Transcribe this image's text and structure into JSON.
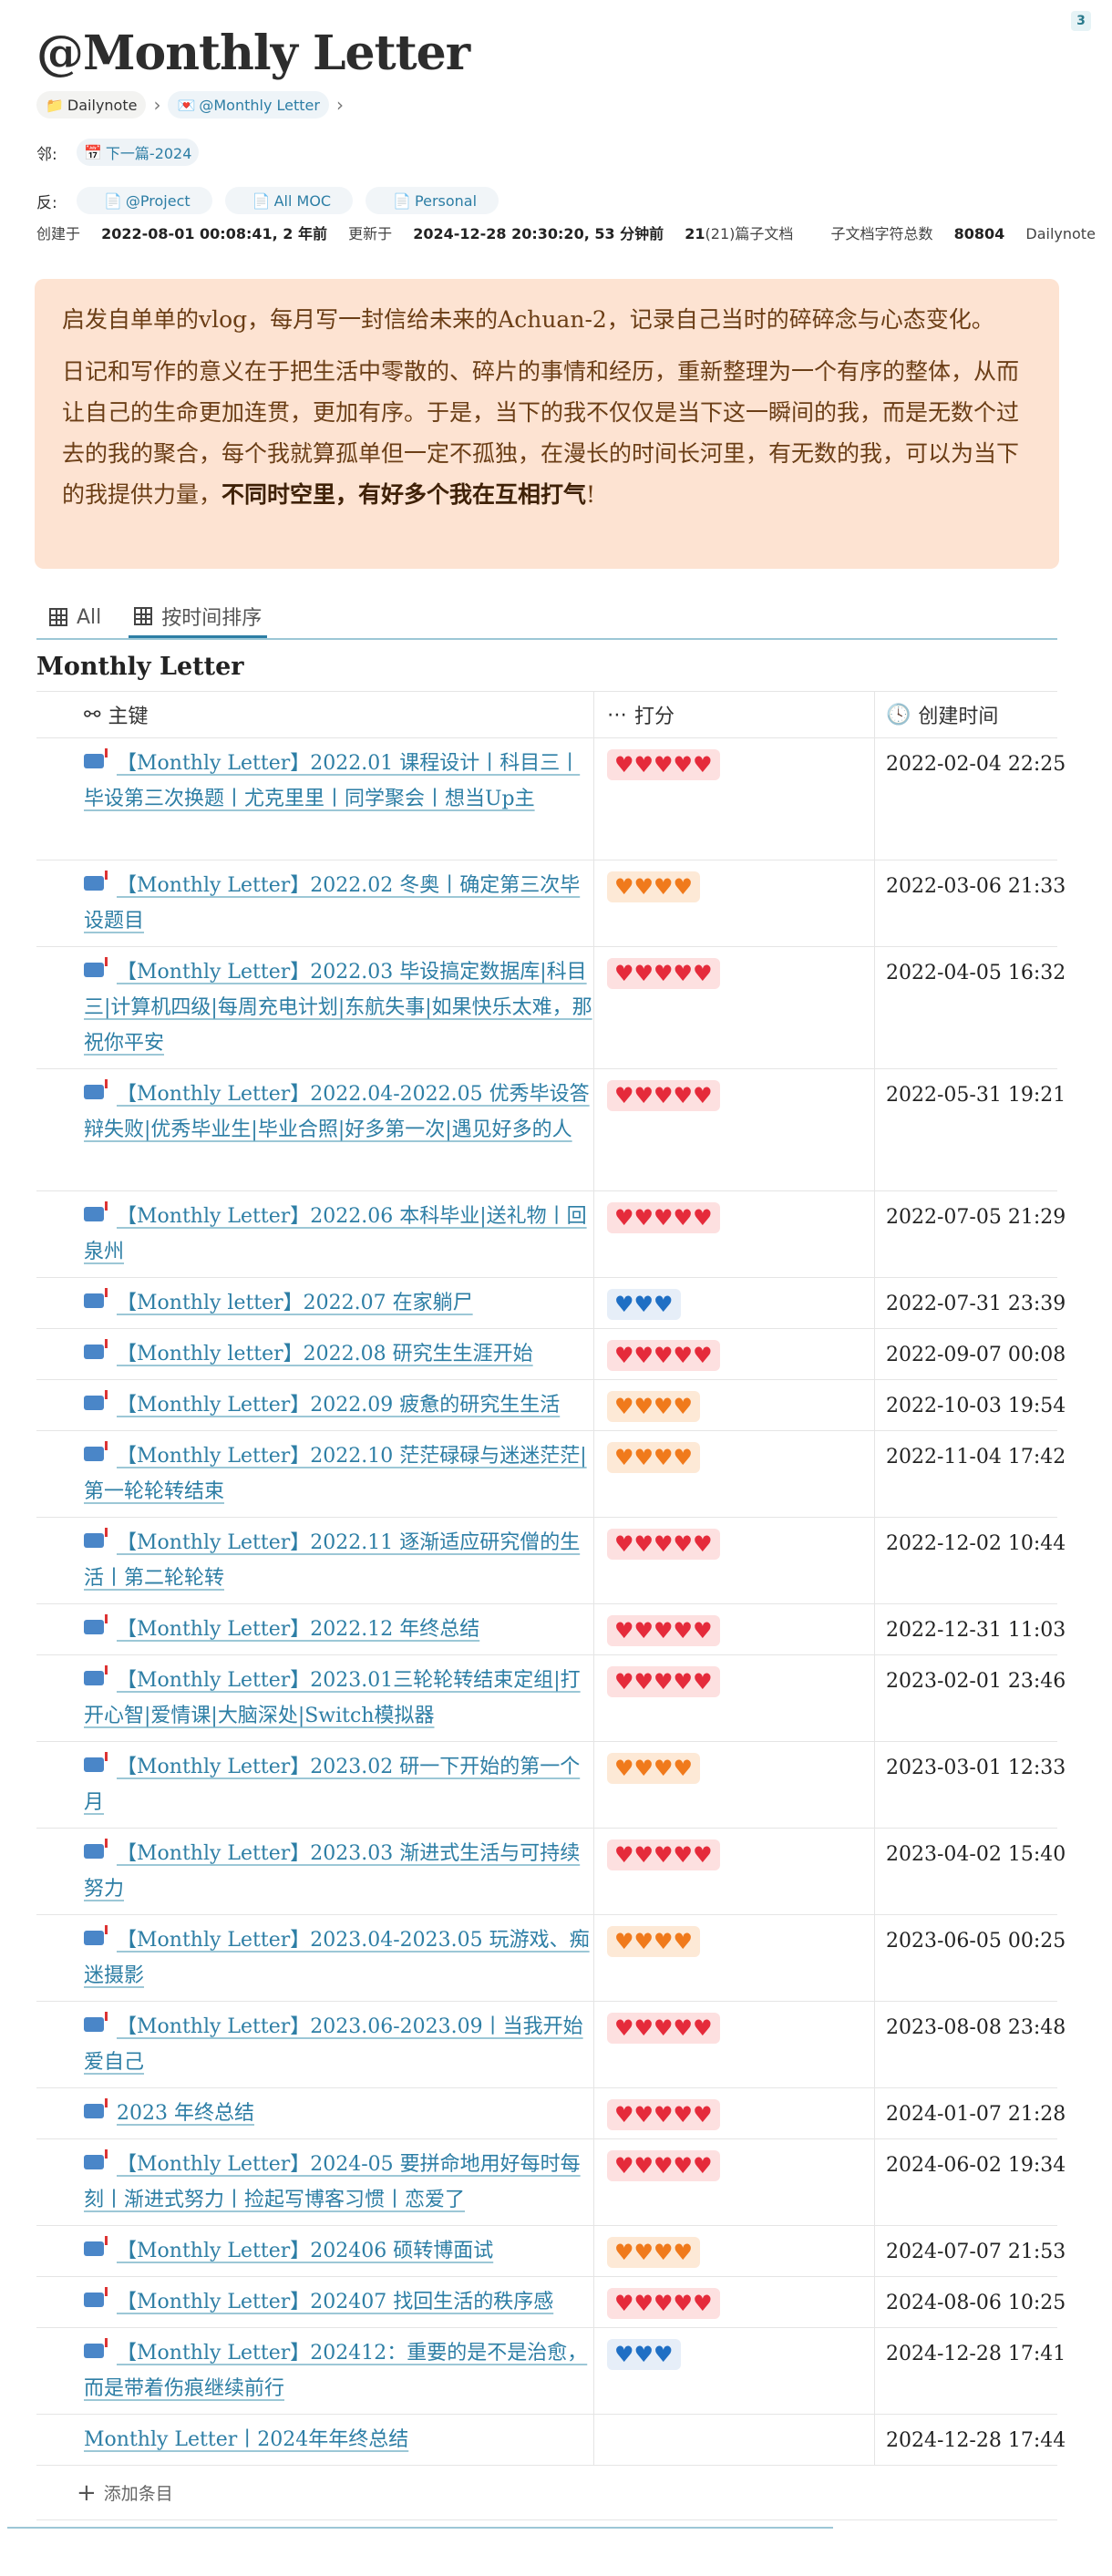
{
  "corner_badge": "3",
  "title": "@Monthly Letter",
  "breadcrumb": [
    {
      "icon": "folder-icon",
      "label": "Dailynote"
    },
    {
      "icon": "letter-icon",
      "label": "@Monthly Letter"
    }
  ],
  "neighbor": {
    "label": "邻:",
    "link": "下一篇-2024"
  },
  "backlinks": {
    "label": "反:",
    "items": [
      "@Project",
      "All MOC",
      "Personal"
    ]
  },
  "meta": {
    "created_label": "创建于",
    "created_value": "2022-08-01 00:08:41, 2 年前",
    "updated_label": "更新于",
    "updated_value": "2024-12-28 20:30:20, 53 分钟前",
    "child_count": "21",
    "child_count_suffix": "(21)篇子文档",
    "chars_label": "子文档字符总数",
    "chars_value": "80804",
    "folder": "Dailynote"
  },
  "callout": {
    "p1": "启发自单单的vlog，每月写一封信给未来的Achuan-2，记录自己当时的碎碎念与心态变化。",
    "p2": "日记和写作的意义在于把生活中零散的、碎片的事情和经历，重新整理为一个有序的整体，从而让自己的生命更加连贯，更加有序。于是，当下的我不仅仅是当下这一瞬间的我，而是无数个过去的我的聚合，每个我就算孤单但一定不孤独，在漫长的时间长河里，有无数的我，可以为当下的我提供力量，",
    "p2_bold": "不同时空里，有好多个我在互相打气",
    "p2_end": "!"
  },
  "tabs": [
    {
      "label": "All"
    },
    {
      "label": "按时间排序"
    }
  ],
  "database_title": "Monthly Letter",
  "columns": {
    "key": "主键",
    "score": "打分",
    "created": "创建时间"
  },
  "rows": [
    {
      "title": "【Monthly Letter】2022.01 课程设计丨科目三丨毕设第三次换题丨尤克里里丨同学聚会丨想当Up主",
      "score": "♥♥♥♥♥",
      "color": "red",
      "created": "2022-02-04 22:25",
      "lines": 3
    },
    {
      "title": "【Monthly Letter】2022.02 冬奥丨确定第三次毕设题目",
      "score": "♥♥♥♥",
      "color": "orange",
      "created": "2022-03-06 21:33",
      "lines": 2
    },
    {
      "title": "【Monthly Letter】2022.03 毕设搞定数据库|科目三|计算机四级|每周充电计划|东航失事|如果快乐太难，那祝你平安",
      "score": "♥♥♥♥♥",
      "color": "red",
      "created": "2022-04-05 16:32",
      "lines": 3
    },
    {
      "title": "【Monthly Letter】2022.04-2022.05 优秀毕设答辩失败|优秀毕业生|毕业合照|好多第一次|遇见好多的人",
      "score": "♥♥♥♥♥",
      "color": "red",
      "created": "2022-05-31 19:21",
      "lines": 3
    },
    {
      "title": "【Monthly Letter】2022.06 本科毕业|送礼物丨回泉州",
      "score": "♥♥♥♥♥",
      "color": "red",
      "created": "2022-07-05 21:29",
      "lines": 2
    },
    {
      "title": "【Monthly letter】2022.07 在家躺尸",
      "score": "♥♥♥",
      "color": "blue",
      "created": "2022-07-31 23:39",
      "lines": 1
    },
    {
      "title": "【Monthly letter】2022.08 研究生生涯开始",
      "score": "♥♥♥♥♥",
      "color": "red",
      "created": "2022-09-07 00:08",
      "lines": 1
    },
    {
      "title": "【Monthly Letter】2022.09 疲惫的研究生生活",
      "score": "♥♥♥♥",
      "color": "orange",
      "created": "2022-10-03 19:54",
      "lines": 1
    },
    {
      "title": "【Monthly Letter】2022.10 茫茫碌碌与迷迷茫茫|第一轮轮转结束",
      "score": "♥♥♥♥",
      "color": "orange",
      "created": "2022-11-04 17:42",
      "lines": 2
    },
    {
      "title": "【Monthly Letter】2022.11 逐渐适应研究僧的生活丨第二轮轮转",
      "score": "♥♥♥♥♥",
      "color": "red",
      "created": "2022-12-02 10:44",
      "lines": 2
    },
    {
      "title": "【Monthly Letter】2022.12 年终总结",
      "score": "♥♥♥♥♥",
      "color": "red",
      "created": "2022-12-31 11:03",
      "lines": 1
    },
    {
      "title": "【Monthly Letter】2023.01三轮轮转结束定组|打开心智|爱情课|大脑深处|Switch模拟器",
      "score": "♥♥♥♥♥",
      "color": "red",
      "created": "2023-02-01 23:46",
      "lines": 2
    },
    {
      "title": "【Monthly Letter】2023.02 研一下开始的第一个月",
      "score": "♥♥♥♥",
      "color": "orange",
      "created": "2023-03-01 12:33",
      "lines": 2
    },
    {
      "title": "【Monthly Letter】2023.03 渐进式生活与可持续努力",
      "score": "♥♥♥♥♥",
      "color": "red",
      "created": "2023-04-02 15:40",
      "lines": 2
    },
    {
      "title": "【Monthly Letter】2023.04-2023.05 玩游戏、痴迷摄影",
      "score": "♥♥♥♥",
      "color": "orange",
      "created": "2023-06-05 00:25",
      "lines": 2
    },
    {
      "title": "【Monthly Letter】2023.06-2023.09丨当我开始爱自己",
      "score": "♥♥♥♥♥",
      "color": "red",
      "created": "2023-08-08 23:48",
      "lines": 2
    },
    {
      "title": "2023 年终总结",
      "score": "♥♥♥♥♥",
      "color": "red",
      "created": "2024-01-07 21:28",
      "lines": 1
    },
    {
      "title": "【Monthly Letter】2024-05 要拼命地用好每时每刻丨渐进式努力丨捡起写博客习惯丨恋爱了",
      "score": "♥♥♥♥♥",
      "color": "red",
      "created": "2024-06-02 19:34",
      "lines": 2
    },
    {
      "title": "【Monthly Letter】202406 硕转博面试",
      "score": "♥♥♥♥",
      "color": "orange",
      "created": "2024-07-07 21:53",
      "lines": 1
    },
    {
      "title": "【Monthly Letter】202407 找回生活的秩序感",
      "score": "♥♥♥♥♥",
      "color": "red",
      "created": "2024-08-06 10:25",
      "lines": 1
    },
    {
      "title": "【Monthly Letter】202412：重要的是不是治愈，而是带着伤痕继续前行",
      "score": "♥♥♥",
      "color": "blue",
      "created": "2024-12-28 17:41",
      "lines": 2
    },
    {
      "title": "Monthly Letter丨2024年年终总结",
      "score": "",
      "color": "",
      "created": "2024-12-28 17:44",
      "lines": 1,
      "no_icon": true
    }
  ],
  "add_row": "添加条目",
  "colors": {
    "accent": "#2d7ea5",
    "callout_bg": "#fde3d2",
    "callout_text": "#6b3e16"
  }
}
